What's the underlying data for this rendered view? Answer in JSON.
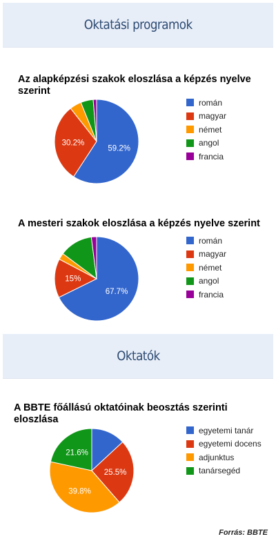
{
  "sections": {
    "programs_title": "Oktatási programok",
    "staff_title": "Oktatók"
  },
  "source": "Forrás: BBTE",
  "chart_data": [
    {
      "type": "pie",
      "title": "Az alapképzési szakok eloszlása a képzés nyelve szerint",
      "legend_position": "right",
      "categories": [
        "román",
        "magyar",
        "német",
        "angol",
        "francia"
      ],
      "values": [
        59.2,
        30.2,
        4.5,
        4.8,
        1.3
      ],
      "data_labels": [
        "59.2%",
        "30.2%",
        "",
        "",
        ""
      ],
      "colors": [
        "#3366cc",
        "#dc3912",
        "#ff9900",
        "#109618",
        "#990099"
      ]
    },
    {
      "type": "pie",
      "title": "A mesteri szakok eloszlása a képzés nyelve szerint",
      "legend_position": "right",
      "categories": [
        "román",
        "magyar",
        "német",
        "angol",
        "francia"
      ],
      "values": [
        67.7,
        15,
        2.5,
        12.8,
        2
      ],
      "data_labels": [
        "67.7%",
        "15%",
        "",
        "",
        ""
      ],
      "colors": [
        "#3366cc",
        "#dc3912",
        "#ff9900",
        "#109618",
        "#990099"
      ]
    },
    {
      "type": "pie",
      "title": "A BBTE főállású oktatóinak beosztás szerinti eloszlása",
      "legend_position": "right",
      "categories": [
        "egyetemi tanár",
        "egyetemi docens",
        "adjunktus",
        "tanársegéd"
      ],
      "values": [
        13.1,
        25.5,
        39.8,
        21.6
      ],
      "data_labels": [
        "",
        "25.5%",
        "39.8%",
        "21.6%"
      ],
      "colors": [
        "#3366cc",
        "#dc3912",
        "#ff9900",
        "#109618"
      ]
    }
  ]
}
